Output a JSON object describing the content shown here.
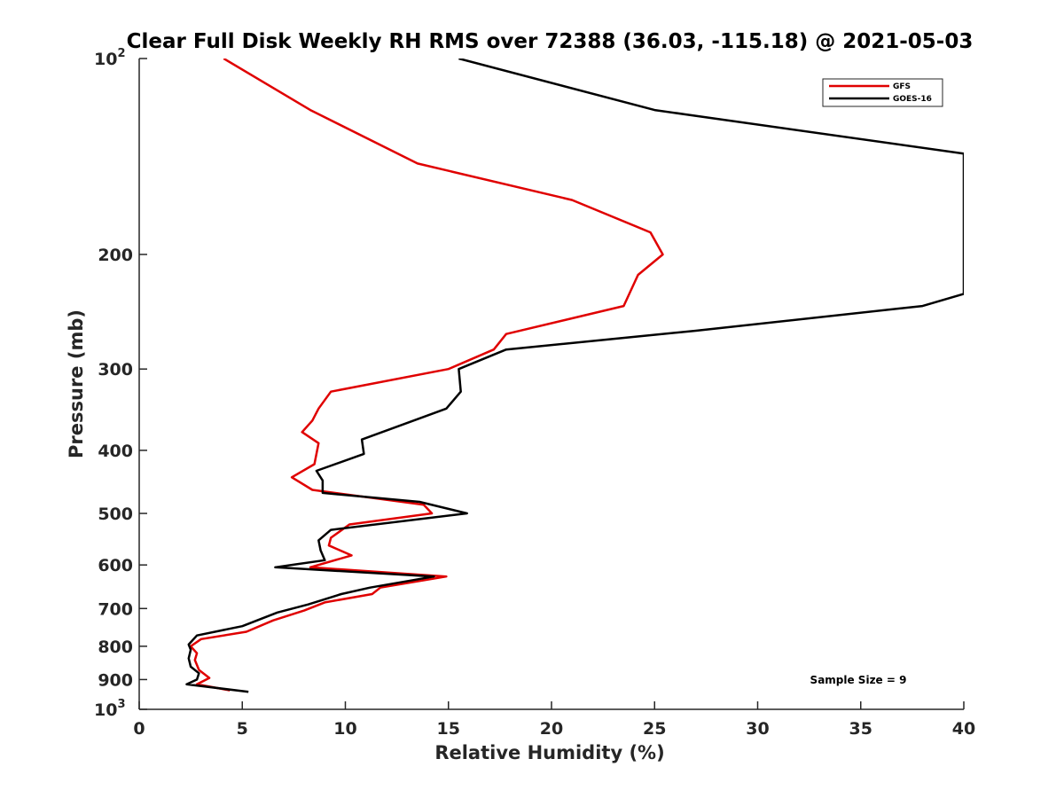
{
  "chart_data": {
    "type": "line",
    "title": "Clear Full Disk Weekly RH RMS over 72388 (36.03, -115.18) @ 2021-05-03",
    "xlabel": "Relative Humidity (%)",
    "ylabel": "Pressure (mb)",
    "xlim": [
      0,
      40
    ],
    "ylim": [
      100,
      1000
    ],
    "y_scale": "log",
    "y_reversed": true,
    "grid": false,
    "legend_position": "top-right",
    "x_ticks": [
      "0",
      "5",
      "10",
      "15",
      "20",
      "25",
      "30",
      "35",
      "40"
    ],
    "y_ticks": [
      {
        "value": 100,
        "label": "10",
        "sup": "2"
      },
      {
        "value": 200,
        "label": "200",
        "sup": ""
      },
      {
        "value": 300,
        "label": "300",
        "sup": ""
      },
      {
        "value": 400,
        "label": "400",
        "sup": ""
      },
      {
        "value": 500,
        "label": "500",
        "sup": ""
      },
      {
        "value": 600,
        "label": "600",
        "sup": ""
      },
      {
        "value": 700,
        "label": "700",
        "sup": ""
      },
      {
        "value": 800,
        "label": "800",
        "sup": ""
      },
      {
        "value": 900,
        "label": "900",
        "sup": ""
      },
      {
        "value": 1000,
        "label": "10",
        "sup": "3"
      }
    ],
    "series": [
      {
        "name": "GFS",
        "color": "#e00000",
        "points": [
          [
            4.1,
            100
          ],
          [
            8.3,
            120
          ],
          [
            13.5,
            145
          ],
          [
            21.0,
            165
          ],
          [
            24.8,
            185
          ],
          [
            25.4,
            200
          ],
          [
            24.2,
            215
          ],
          [
            23.5,
            240
          ],
          [
            17.8,
            265
          ],
          [
            17.2,
            280
          ],
          [
            15.0,
            300
          ],
          [
            9.3,
            325
          ],
          [
            8.7,
            345
          ],
          [
            8.4,
            360
          ],
          [
            7.9,
            375
          ],
          [
            8.7,
            390
          ],
          [
            8.5,
            420
          ],
          [
            7.4,
            440
          ],
          [
            8.4,
            460
          ],
          [
            13.8,
            485
          ],
          [
            14.2,
            500
          ],
          [
            10.2,
            520
          ],
          [
            9.3,
            545
          ],
          [
            9.2,
            560
          ],
          [
            10.3,
            580
          ],
          [
            8.3,
            605
          ],
          [
            14.9,
            625
          ],
          [
            11.7,
            650
          ],
          [
            11.3,
            665
          ],
          [
            9.0,
            685
          ],
          [
            8.0,
            705
          ],
          [
            6.5,
            730
          ],
          [
            5.2,
            760
          ],
          [
            3.0,
            780
          ],
          [
            2.5,
            800
          ],
          [
            2.8,
            820
          ],
          [
            2.7,
            840
          ],
          [
            2.9,
            870
          ],
          [
            3.4,
            895
          ],
          [
            2.8,
            915
          ],
          [
            4.4,
            935
          ]
        ]
      },
      {
        "name": "GOES-16",
        "color": "#000000",
        "points": [
          [
            15.5,
            100
          ],
          [
            25.0,
            120
          ],
          [
            40.0,
            140
          ],
          [
            40.0,
            230
          ],
          [
            38.0,
            240
          ],
          [
            27.0,
            262
          ],
          [
            17.8,
            280
          ],
          [
            15.5,
            300
          ],
          [
            15.6,
            325
          ],
          [
            14.9,
            345
          ],
          [
            12.8,
            365
          ],
          [
            10.8,
            385
          ],
          [
            10.9,
            405
          ],
          [
            8.6,
            430
          ],
          [
            8.9,
            445
          ],
          [
            8.9,
            465
          ],
          [
            13.6,
            480
          ],
          [
            15.9,
            500
          ],
          [
            9.3,
            530
          ],
          [
            8.7,
            550
          ],
          [
            8.8,
            570
          ],
          [
            9.0,
            590
          ],
          [
            6.6,
            605
          ],
          [
            14.3,
            625
          ],
          [
            11.2,
            650
          ],
          [
            9.8,
            665
          ],
          [
            8.2,
            690
          ],
          [
            6.7,
            710
          ],
          [
            5.0,
            745
          ],
          [
            2.8,
            770
          ],
          [
            2.4,
            795
          ],
          [
            2.5,
            810
          ],
          [
            2.4,
            835
          ],
          [
            2.5,
            860
          ],
          [
            2.9,
            880
          ],
          [
            2.8,
            900
          ],
          [
            2.3,
            915
          ],
          [
            5.3,
            940
          ]
        ]
      }
    ],
    "annotations": [
      "Sample Size = 9"
    ]
  }
}
